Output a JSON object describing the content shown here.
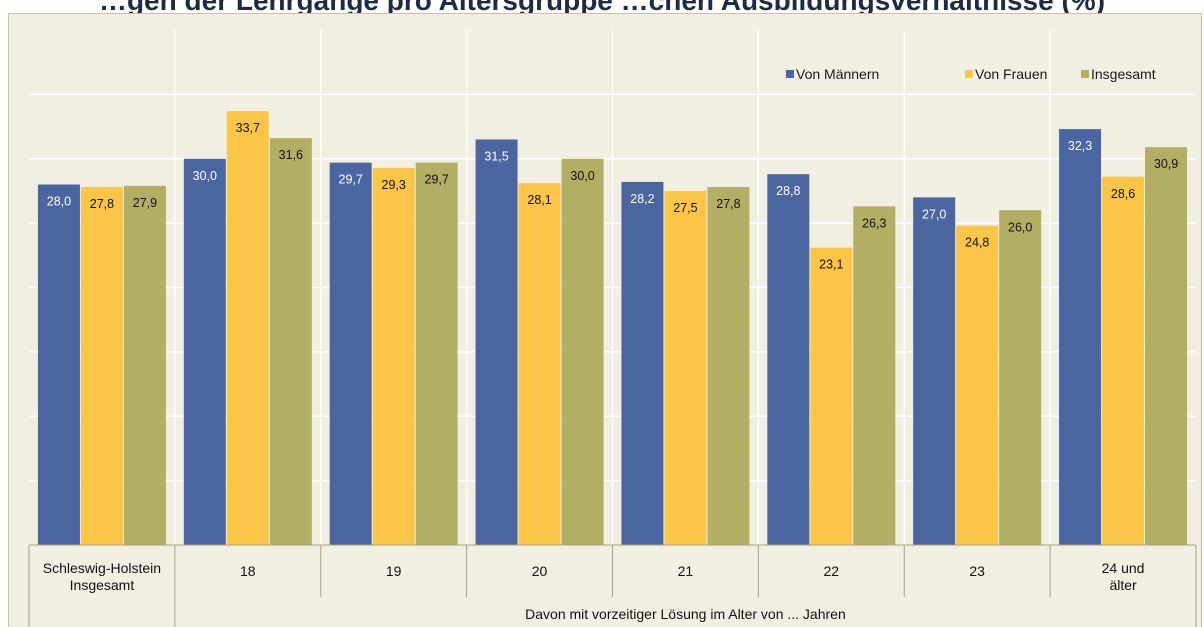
{
  "chart_data": {
    "type": "bar",
    "title": "…gen der Lehrgänge pro Altersgruppe …chen Ausbildungsverhältnisse (%)",
    "categories": [
      "Schleswig-Holstein Insgesamt",
      "18",
      "19",
      "20",
      "21",
      "22",
      "23",
      "24 und älter"
    ],
    "category_lines": [
      [
        "Schleswig-Holstein",
        "Insgesamt"
      ],
      [
        "18"
      ],
      [
        "19"
      ],
      [
        "20"
      ],
      [
        "21"
      ],
      [
        "22"
      ],
      [
        "23"
      ],
      [
        "24 und",
        "älter"
      ]
    ],
    "group_label": "Davon mit vorzeitiger Lösung im Alter von ... Jahren",
    "series": [
      {
        "name": "Von Männern",
        "color": "#4a65a0",
        "values": [
          28.0,
          30.0,
          29.7,
          31.5,
          28.2,
          28.8,
          27.0,
          32.3
        ],
        "labels": [
          "28,0",
          "30,0",
          "29,7",
          "31,5",
          "28,2",
          "28,8",
          "27,0",
          "32,3"
        ],
        "label_color": "#ffffff"
      },
      {
        "name": "Von Frauen",
        "color": "#fbc648",
        "values": [
          27.8,
          33.7,
          29.3,
          28.1,
          27.5,
          23.1,
          24.8,
          28.6
        ],
        "labels": [
          "27,8",
          "33,7",
          "29,3",
          "28,1",
          "27,5",
          "23,1",
          "24,8",
          "28,6"
        ],
        "label_color": "#111111"
      },
      {
        "name": "Insgesamt",
        "color": "#b2ae64",
        "values": [
          27.9,
          31.6,
          29.7,
          30.0,
          27.8,
          26.3,
          26.0,
          30.9
        ],
        "labels": [
          "27,9",
          "31,6",
          "29,7",
          "30,0",
          "27,8",
          "26,3",
          "26,0",
          "30,9"
        ],
        "label_color": "#111111"
      }
    ],
    "ylim": [
      0,
      40
    ],
    "grid": true,
    "legend_position": "top-right"
  }
}
